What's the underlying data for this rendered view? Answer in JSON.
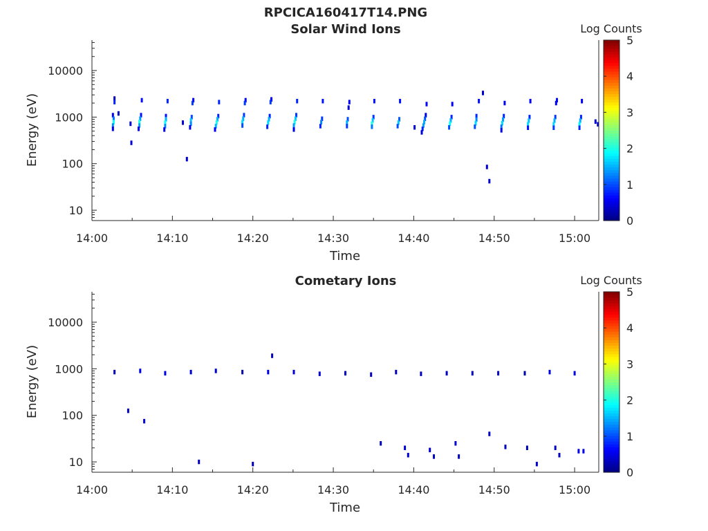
{
  "figure": {
    "file_title": "RPCICA160417T14.PNG"
  },
  "colors": {
    "colormap": [
      "#00007f",
      "#0000ff",
      "#007fff",
      "#00ffff",
      "#7fff7f",
      "#ffff00",
      "#ff7f00",
      "#ff0000",
      "#7f0000"
    ],
    "axis": "#262626",
    "background": "#ffffff"
  },
  "chart_data": [
    {
      "type": "heatmap",
      "title": "Solar Wind Ions",
      "xlabel": "Time",
      "ylabel": "Energy (eV)",
      "x_ticks": [
        "14:00",
        "14:10",
        "14:20",
        "14:30",
        "14:40",
        "14:50",
        "15:00"
      ],
      "x_tick_minutes": [
        0,
        10,
        20,
        30,
        40,
        50,
        60
      ],
      "xlim_minutes": [
        0,
        63
      ],
      "y_scale": "log",
      "ylim": [
        6,
        45000
      ],
      "y_ticks": [
        "10",
        "100",
        "1000",
        "10000"
      ],
      "y_tick_values": [
        10,
        100,
        1000,
        10000
      ],
      "colorbar": {
        "label": "Log Counts",
        "range": [
          0,
          5
        ],
        "ticks": [
          "0",
          "1",
          "2",
          "3",
          "4",
          "5"
        ]
      },
      "sweep_start_minutes": [
        2.8,
        6.0,
        9.2,
        12.4,
        15.6,
        18.9,
        22.1,
        25.3,
        28.5,
        31.8,
        34.9,
        38.1,
        41.4,
        44.6,
        47.9,
        51.1,
        54.3,
        57.5,
        60.7
      ],
      "cells": [
        {
          "t": 2.8,
          "e": 2500,
          "v": 0.3
        },
        {
          "t": 2.8,
          "e": 2100,
          "v": 0.8
        },
        {
          "t": 2.6,
          "e": 1100,
          "v": 0.5
        },
        {
          "t": 2.7,
          "e": 920,
          "v": 1.2
        },
        {
          "t": 2.7,
          "e": 780,
          "v": 1.9
        },
        {
          "t": 2.6,
          "e": 660,
          "v": 1.3
        },
        {
          "t": 2.6,
          "e": 560,
          "v": 0.5
        },
        {
          "t": 6.2,
          "e": 2300,
          "v": 0.7
        },
        {
          "t": 6.1,
          "e": 1100,
          "v": 0.7
        },
        {
          "t": 6.0,
          "e": 920,
          "v": 1.4
        },
        {
          "t": 5.9,
          "e": 780,
          "v": 2.0
        },
        {
          "t": 5.9,
          "e": 660,
          "v": 1.4
        },
        {
          "t": 5.8,
          "e": 560,
          "v": 0.6
        },
        {
          "t": 9.4,
          "e": 2200,
          "v": 0.8
        },
        {
          "t": 9.2,
          "e": 1050,
          "v": 0.7
        },
        {
          "t": 9.2,
          "e": 900,
          "v": 1.5
        },
        {
          "t": 9.1,
          "e": 760,
          "v": 1.9
        },
        {
          "t": 9.1,
          "e": 640,
          "v": 1.3
        },
        {
          "t": 9.0,
          "e": 540,
          "v": 0.5
        },
        {
          "t": 12.6,
          "e": 2300,
          "v": 0.6
        },
        {
          "t": 12.5,
          "e": 2000,
          "v": 0.9
        },
        {
          "t": 12.4,
          "e": 1000,
          "v": 1.0
        },
        {
          "t": 12.3,
          "e": 850,
          "v": 1.6
        },
        {
          "t": 12.3,
          "e": 720,
          "v": 1.3
        },
        {
          "t": 12.2,
          "e": 600,
          "v": 0.5
        },
        {
          "t": 15.8,
          "e": 2100,
          "v": 0.8
        },
        {
          "t": 15.7,
          "e": 1050,
          "v": 0.8
        },
        {
          "t": 15.6,
          "e": 900,
          "v": 1.5
        },
        {
          "t": 15.5,
          "e": 760,
          "v": 2.0
        },
        {
          "t": 15.4,
          "e": 640,
          "v": 1.5
        },
        {
          "t": 15.3,
          "e": 540,
          "v": 0.6
        },
        {
          "t": 19.1,
          "e": 2300,
          "v": 0.6
        },
        {
          "t": 19.0,
          "e": 2000,
          "v": 0.9
        },
        {
          "t": 18.9,
          "e": 1100,
          "v": 0.9
        },
        {
          "t": 18.8,
          "e": 920,
          "v": 1.5
        },
        {
          "t": 18.7,
          "e": 780,
          "v": 1.7
        },
        {
          "t": 18.7,
          "e": 660,
          "v": 1.0
        },
        {
          "t": 22.3,
          "e": 2400,
          "v": 0.6
        },
        {
          "t": 22.2,
          "e": 2100,
          "v": 0.9
        },
        {
          "t": 22.1,
          "e": 1050,
          "v": 0.8
        },
        {
          "t": 22.0,
          "e": 900,
          "v": 1.5
        },
        {
          "t": 21.9,
          "e": 760,
          "v": 1.7
        },
        {
          "t": 21.8,
          "e": 620,
          "v": 0.8
        },
        {
          "t": 25.5,
          "e": 2200,
          "v": 0.8
        },
        {
          "t": 25.4,
          "e": 1100,
          "v": 0.9
        },
        {
          "t": 25.3,
          "e": 920,
          "v": 1.6
        },
        {
          "t": 25.2,
          "e": 780,
          "v": 2.0
        },
        {
          "t": 25.1,
          "e": 660,
          "v": 1.4
        },
        {
          "t": 25.1,
          "e": 540,
          "v": 0.5
        },
        {
          "t": 28.7,
          "e": 2200,
          "v": 0.7
        },
        {
          "t": 28.6,
          "e": 920,
          "v": 0.9
        },
        {
          "t": 28.5,
          "e": 780,
          "v": 1.3
        },
        {
          "t": 28.4,
          "e": 640,
          "v": 0.8
        },
        {
          "t": 32.0,
          "e": 2100,
          "v": 0.6
        },
        {
          "t": 31.9,
          "e": 1600,
          "v": 0.4
        },
        {
          "t": 31.8,
          "e": 900,
          "v": 1.0
        },
        {
          "t": 31.7,
          "e": 760,
          "v": 1.5
        },
        {
          "t": 31.7,
          "e": 640,
          "v": 0.9
        },
        {
          "t": 35.1,
          "e": 2200,
          "v": 0.7
        },
        {
          "t": 35.0,
          "e": 1000,
          "v": 0.9
        },
        {
          "t": 34.9,
          "e": 850,
          "v": 1.6
        },
        {
          "t": 34.8,
          "e": 720,
          "v": 2.0
        },
        {
          "t": 34.8,
          "e": 620,
          "v": 1.2
        },
        {
          "t": 38.3,
          "e": 2200,
          "v": 0.7
        },
        {
          "t": 38.2,
          "e": 900,
          "v": 1.1
        },
        {
          "t": 38.1,
          "e": 760,
          "v": 1.6
        },
        {
          "t": 38.0,
          "e": 640,
          "v": 1.0
        },
        {
          "t": 41.6,
          "e": 1900,
          "v": 0.6
        },
        {
          "t": 41.5,
          "e": 1100,
          "v": 0.5
        },
        {
          "t": 41.4,
          "e": 920,
          "v": 1.0
        },
        {
          "t": 41.3,
          "e": 780,
          "v": 1.5
        },
        {
          "t": 41.2,
          "e": 660,
          "v": 1.4
        },
        {
          "t": 41.1,
          "e": 560,
          "v": 0.8
        },
        {
          "t": 41.0,
          "e": 470,
          "v": 0.4
        },
        {
          "t": 44.8,
          "e": 1900,
          "v": 0.6
        },
        {
          "t": 44.7,
          "e": 1000,
          "v": 0.8
        },
        {
          "t": 44.6,
          "e": 850,
          "v": 1.5
        },
        {
          "t": 44.5,
          "e": 720,
          "v": 1.9
        },
        {
          "t": 44.4,
          "e": 600,
          "v": 1.0
        },
        {
          "t": 48.1,
          "e": 2200,
          "v": 0.7
        },
        {
          "t": 47.8,
          "e": 1050,
          "v": 0.8
        },
        {
          "t": 47.8,
          "e": 880,
          "v": 1.3
        },
        {
          "t": 47.7,
          "e": 740,
          "v": 1.7
        },
        {
          "t": 47.6,
          "e": 620,
          "v": 1.0
        },
        {
          "t": 51.3,
          "e": 2000,
          "v": 0.6
        },
        {
          "t": 51.2,
          "e": 1050,
          "v": 0.8
        },
        {
          "t": 51.1,
          "e": 880,
          "v": 1.4
        },
        {
          "t": 51.0,
          "e": 740,
          "v": 1.7
        },
        {
          "t": 50.9,
          "e": 620,
          "v": 1.2
        },
        {
          "t": 50.9,
          "e": 520,
          "v": 0.5
        },
        {
          "t": 54.5,
          "e": 2200,
          "v": 0.6
        },
        {
          "t": 54.4,
          "e": 1000,
          "v": 0.8
        },
        {
          "t": 54.3,
          "e": 840,
          "v": 1.6
        },
        {
          "t": 54.2,
          "e": 700,
          "v": 1.7
        },
        {
          "t": 54.2,
          "e": 590,
          "v": 0.7
        },
        {
          "t": 57.8,
          "e": 2300,
          "v": 0.7
        },
        {
          "t": 57.7,
          "e": 2000,
          "v": 0.6
        },
        {
          "t": 57.6,
          "e": 1000,
          "v": 0.9
        },
        {
          "t": 57.5,
          "e": 840,
          "v": 1.5
        },
        {
          "t": 57.4,
          "e": 700,
          "v": 1.7
        },
        {
          "t": 57.4,
          "e": 590,
          "v": 0.9
        },
        {
          "t": 60.9,
          "e": 2200,
          "v": 0.6
        },
        {
          "t": 60.8,
          "e": 1000,
          "v": 0.8
        },
        {
          "t": 60.7,
          "e": 840,
          "v": 1.5
        },
        {
          "t": 60.6,
          "e": 700,
          "v": 1.8
        },
        {
          "t": 60.6,
          "e": 590,
          "v": 0.8
        },
        {
          "t": 3.3,
          "e": 1200,
          "v": 0.3
        },
        {
          "t": 4.9,
          "e": 280,
          "v": 0.4
        },
        {
          "t": 4.8,
          "e": 720,
          "v": 0.4
        },
        {
          "t": 11.8,
          "e": 125,
          "v": 0.4
        },
        {
          "t": 11.3,
          "e": 760,
          "v": 0.4
        },
        {
          "t": 40.1,
          "e": 600,
          "v": 0.4
        },
        {
          "t": 48.6,
          "e": 3300,
          "v": 0.4
        },
        {
          "t": 49.1,
          "e": 85,
          "v": 0.4
        },
        {
          "t": 49.4,
          "e": 42,
          "v": 0.4
        },
        {
          "t": 62.6,
          "e": 800,
          "v": 0.4
        },
        {
          "t": 62.9,
          "e": 700,
          "v": 0.4
        }
      ]
    },
    {
      "type": "heatmap",
      "title": "Cometary Ions",
      "xlabel": "Time",
      "ylabel": "Energy (eV)",
      "x_ticks": [
        "14:00",
        "14:10",
        "14:20",
        "14:30",
        "14:40",
        "14:50",
        "15:00"
      ],
      "x_tick_minutes": [
        0,
        10,
        20,
        30,
        40,
        50,
        60
      ],
      "xlim_minutes": [
        0,
        63
      ],
      "y_scale": "log",
      "ylim": [
        6,
        45000
      ],
      "y_ticks": [
        "10",
        "100",
        "1000",
        "10000"
      ],
      "y_tick_values": [
        10,
        100,
        1000,
        10000
      ],
      "colorbar": {
        "label": "Log Counts",
        "range": [
          0,
          5
        ],
        "ticks": [
          "0",
          "1",
          "2",
          "3",
          "4",
          "5"
        ]
      },
      "cells": [
        {
          "t": 2.8,
          "e": 850,
          "v": 0.3
        },
        {
          "t": 6.0,
          "e": 900,
          "v": 0.5
        },
        {
          "t": 9.1,
          "e": 800,
          "v": 0.5
        },
        {
          "t": 12.3,
          "e": 850,
          "v": 0.4
        },
        {
          "t": 15.4,
          "e": 900,
          "v": 0.4
        },
        {
          "t": 18.7,
          "e": 850,
          "v": 0.2
        },
        {
          "t": 21.9,
          "e": 850,
          "v": 0.5
        },
        {
          "t": 25.1,
          "e": 850,
          "v": 0.4
        },
        {
          "t": 28.3,
          "e": 780,
          "v": 0.4
        },
        {
          "t": 31.5,
          "e": 800,
          "v": 0.3
        },
        {
          "t": 34.7,
          "e": 750,
          "v": 0.3
        },
        {
          "t": 37.8,
          "e": 850,
          "v": 0.3
        },
        {
          "t": 40.9,
          "e": 780,
          "v": 0.3
        },
        {
          "t": 44.1,
          "e": 800,
          "v": 0.3
        },
        {
          "t": 47.3,
          "e": 800,
          "v": 0.3
        },
        {
          "t": 50.5,
          "e": 800,
          "v": 0.3
        },
        {
          "t": 53.8,
          "e": 800,
          "v": 0.2
        },
        {
          "t": 56.9,
          "e": 850,
          "v": 0.5
        },
        {
          "t": 60.0,
          "e": 800,
          "v": 0.5
        },
        {
          "t": 22.4,
          "e": 1900,
          "v": 0.3
        },
        {
          "t": 4.5,
          "e": 125,
          "v": 0.3
        },
        {
          "t": 6.5,
          "e": 75,
          "v": 0.4
        },
        {
          "t": 13.3,
          "e": 10,
          "v": 0.3
        },
        {
          "t": 20.0,
          "e": 9,
          "v": 0.3
        },
        {
          "t": 35.9,
          "e": 25,
          "v": 0.3
        },
        {
          "t": 38.9,
          "e": 20,
          "v": 0.4
        },
        {
          "t": 39.3,
          "e": 14,
          "v": 0.4
        },
        {
          "t": 42.0,
          "e": 18,
          "v": 0.4
        },
        {
          "t": 42.5,
          "e": 13,
          "v": 0.3
        },
        {
          "t": 45.2,
          "e": 25,
          "v": 0.4
        },
        {
          "t": 45.6,
          "e": 13,
          "v": 0.3
        },
        {
          "t": 49.4,
          "e": 40,
          "v": 0.3
        },
        {
          "t": 51.4,
          "e": 21,
          "v": 0.3
        },
        {
          "t": 54.1,
          "e": 20,
          "v": 0.3
        },
        {
          "t": 55.3,
          "e": 9,
          "v": 0.4
        },
        {
          "t": 57.6,
          "e": 20,
          "v": 0.3
        },
        {
          "t": 58.1,
          "e": 14,
          "v": 0.3
        },
        {
          "t": 60.5,
          "e": 17,
          "v": 0.5
        },
        {
          "t": 61.1,
          "e": 17,
          "v": 0.5
        }
      ]
    }
  ]
}
